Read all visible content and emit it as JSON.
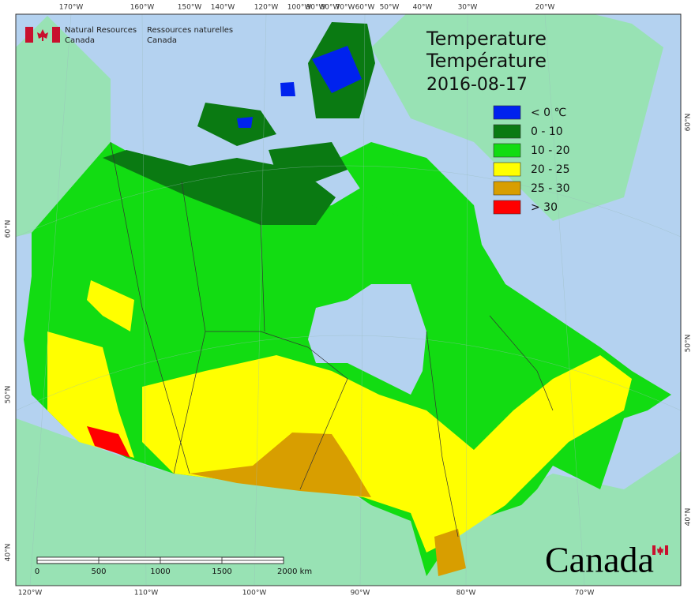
{
  "header": {
    "org_en": [
      "Natural Resources",
      "Canada"
    ],
    "org_fr": [
      "Ressources naturelles",
      "Canada"
    ]
  },
  "title": {
    "en": "Temperature",
    "fr": "Température",
    "date": "2016-08-17"
  },
  "legend": [
    {
      "label": "< 0 ℃",
      "color": "#0022ee"
    },
    {
      "label": "0 - 10",
      "color": "#0a7a12"
    },
    {
      "label": "10 - 20",
      "color": "#12dc12"
    },
    {
      "label": "20 - 25",
      "color": "#ffff00"
    },
    {
      "label": "25 - 30",
      "color": "#d89e00"
    },
    {
      "label": "> 30",
      "color": "#ff0000"
    }
  ],
  "graticule": {
    "top": [
      "170°W",
      "160°W",
      "150°W",
      "140°W",
      "120°W",
      "100°W",
      "90°W",
      "80°W",
      "70°W",
      "60°W",
      "50°W",
      "40°W",
      "30°W",
      "20°W"
    ],
    "bottom": [
      "120°W",
      "110°W",
      "100°W",
      "90°W",
      "80°W",
      "70°W"
    ],
    "left": [
      "60°N",
      "50°N",
      "40°N"
    ],
    "right": [
      "60°N",
      "50°N",
      "40°N"
    ]
  },
  "scale_bar": {
    "labels": [
      "0",
      "500",
      "1000",
      "1500",
      "2000 km"
    ]
  },
  "wordmark": "Canada"
}
